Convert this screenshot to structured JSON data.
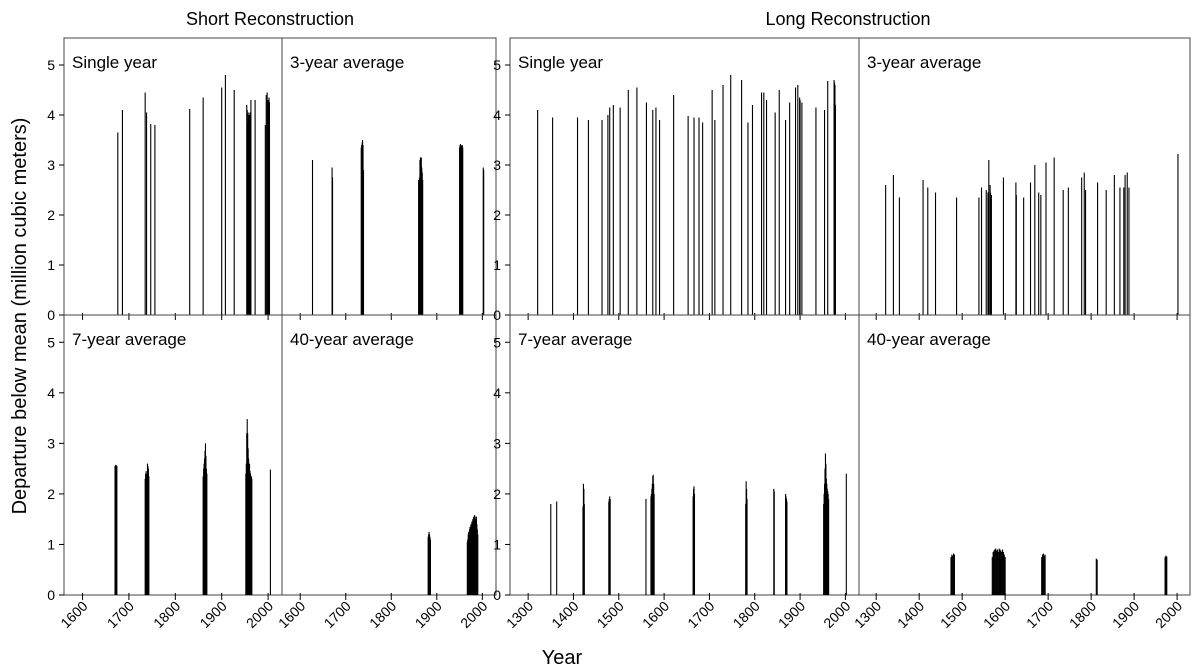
{
  "figure": {
    "ylabel": "Departure below mean (million cubic meters)",
    "xlabel": "Year",
    "group_titles": [
      "Short Reconstruction",
      "Long Reconstruction"
    ]
  },
  "chart_data": {
    "type": "bar",
    "ylim": [
      0,
      5.5
    ],
    "yticks": [
      0,
      1,
      2,
      3,
      4,
      5
    ],
    "grid": false,
    "panels": [
      {
        "id": "short-single",
        "group": "Short Reconstruction",
        "label": "Single year",
        "xlim": [
          1560,
          2030
        ],
        "xticks": [
          1600,
          1700,
          1800,
          1900,
          2000
        ],
        "xtick_labels_shown": false,
        "x": [
          1676,
          1686,
          1735,
          1738,
          1747,
          1756,
          1831,
          1860,
          1900,
          1908,
          1927,
          1954,
          1955,
          1956,
          1957,
          1958,
          1959,
          1961,
          1963,
          1972,
          1994,
          1996,
          1998,
          2000,
          2002,
          2003
        ],
        "values": [
          3.65,
          4.1,
          4.45,
          4.05,
          3.82,
          3.8,
          4.12,
          4.35,
          4.55,
          4.8,
          4.5,
          4.2,
          4.1,
          3.8,
          4.05,
          3.9,
          4.0,
          4.05,
          4.3,
          4.3,
          3.8,
          4.4,
          4.45,
          4.3,
          4.35,
          4.25
        ]
      },
      {
        "id": "short-3yr",
        "group": "Short Reconstruction",
        "label": "3-year average",
        "xlim": [
          1560,
          2030
        ],
        "xticks": [
          1600,
          1700,
          1800,
          1900,
          2000
        ],
        "xtick_labels_shown": false,
        "x": [
          1627,
          1670,
          1671,
          1734,
          1735,
          1736,
          1737,
          1738,
          1739,
          1860,
          1861,
          1862,
          1863,
          1864,
          1865,
          1866,
          1867,
          1868,
          1869,
          1950,
          1951,
          1952,
          1953,
          1954,
          1955,
          1956,
          1957,
          2002,
          2003
        ],
        "values": [
          3.1,
          2.95,
          2.75,
          3.35,
          3.4,
          3.45,
          3.5,
          3.4,
          2.9,
          2.7,
          2.7,
          2.75,
          3.1,
          3.15,
          3.15,
          3.15,
          2.95,
          2.85,
          2.7,
          3.35,
          3.4,
          3.42,
          3.4,
          3.35,
          3.38,
          3.4,
          3.35,
          2.95,
          2.9
        ]
      },
      {
        "id": "short-7yr",
        "group": "Short Reconstruction",
        "label": "7-year average",
        "xlim": [
          1560,
          2030
        ],
        "xticks": [
          1600,
          1700,
          1800,
          1900,
          2000
        ],
        "xtick_labels_shown": true,
        "x": [
          1670,
          1671,
          1672,
          1673,
          1674,
          1735,
          1736,
          1737,
          1738,
          1739,
          1740,
          1741,
          1742,
          1743,
          1860,
          1861,
          1862,
          1863,
          1864,
          1865,
          1866,
          1867,
          1868,
          1952,
          1953,
          1954,
          1955,
          1956,
          1957,
          1958,
          1959,
          1960,
          1961,
          1962,
          1963,
          1964,
          1965,
          2005
        ],
        "values": [
          2.55,
          2.57,
          2.57,
          2.56,
          2.55,
          2.3,
          2.4,
          2.45,
          2.4,
          2.35,
          2.6,
          2.55,
          2.5,
          2.35,
          2.35,
          2.5,
          2.6,
          2.7,
          2.85,
          3.0,
          2.75,
          2.5,
          2.4,
          2.4,
          2.6,
          3.2,
          3.48,
          3.2,
          2.9,
          2.7,
          2.5,
          2.6,
          2.45,
          2.4,
          2.3,
          2.35,
          2.3,
          2.48
        ]
      },
      {
        "id": "short-40yr",
        "group": "Short Reconstruction",
        "label": "40-year average",
        "xlim": [
          1560,
          2030
        ],
        "xticks": [
          1600,
          1700,
          1800,
          1900,
          2000
        ],
        "xtick_labels_shown": true,
        "x": [
          1881,
          1882,
          1883,
          1884,
          1885,
          1886,
          1967,
          1968,
          1969,
          1970,
          1971,
          1972,
          1973,
          1974,
          1975,
          1976,
          1977,
          1978,
          1979,
          1980,
          1981,
          1982,
          1983,
          1984,
          1985,
          1986,
          1987,
          1988,
          1989,
          1990
        ],
        "values": [
          1.15,
          1.2,
          1.25,
          1.2,
          1.15,
          1.1,
          1.05,
          1.1,
          1.2,
          1.25,
          1.2,
          1.3,
          1.35,
          1.3,
          1.4,
          1.35,
          1.45,
          1.4,
          1.5,
          1.45,
          1.55,
          1.5,
          1.58,
          1.55,
          1.5,
          1.45,
          1.55,
          1.4,
          1.3,
          1.2
        ]
      },
      {
        "id": "long-single",
        "group": "Long Reconstruction",
        "label": "Single year",
        "xlim": [
          1260,
          2030
        ],
        "xticks": [
          1300,
          1400,
          1500,
          1600,
          1700,
          1800,
          1900,
          2000
        ],
        "xtick_labels_shown": false,
        "x": [
          1321,
          1354,
          1409,
          1433,
          1463,
          1476,
          1480,
          1488,
          1503,
          1521,
          1540,
          1561,
          1575,
          1582,
          1590,
          1621,
          1653,
          1666,
          1677,
          1685,
          1706,
          1712,
          1730,
          1747,
          1771,
          1785,
          1795,
          1815,
          1820,
          1826,
          1845,
          1854,
          1868,
          1877,
          1890,
          1895,
          1899,
          1900,
          1904,
          1935,
          1954,
          1961,
          1975,
          1976,
          1977,
          1978
        ],
        "values": [
          4.1,
          3.95,
          3.95,
          3.9,
          3.9,
          4.0,
          4.15,
          4.2,
          4.15,
          4.5,
          4.55,
          4.25,
          4.1,
          4.15,
          3.9,
          4.4,
          3.98,
          3.95,
          3.95,
          3.85,
          4.5,
          3.9,
          4.6,
          4.8,
          4.7,
          3.85,
          4.2,
          4.45,
          4.45,
          4.3,
          4.05,
          4.5,
          3.9,
          4.25,
          4.55,
          4.6,
          4.35,
          4.3,
          4.25,
          4.15,
          4.1,
          4.68,
          4.7,
          4.65,
          4.6,
          4.2
        ]
      },
      {
        "id": "long-3yr",
        "group": "Long Reconstruction",
        "label": "3-year average",
        "xlim": [
          1260,
          2030
        ],
        "xticks": [
          1300,
          1400,
          1500,
          1600,
          1700,
          1800,
          1900,
          2000
        ],
        "xtick_labels_shown": false,
        "x": [
          1322,
          1340,
          1354,
          1409,
          1420,
          1438,
          1487,
          1539,
          1545,
          1556,
          1560,
          1562,
          1565,
          1566,
          1568,
          1596,
          1625,
          1626,
          1643,
          1659,
          1669,
          1678,
          1683,
          1695,
          1714,
          1735,
          1747,
          1778,
          1784,
          1787,
          1815,
          1835,
          1854,
          1867,
          1876,
          1879,
          1884,
          1888,
          2002
        ],
        "values": [
          2.6,
          2.8,
          2.35,
          2.7,
          2.55,
          2.45,
          2.35,
          2.35,
          2.55,
          2.5,
          2.45,
          3.1,
          2.6,
          2.45,
          2.4,
          2.75,
          2.65,
          2.4,
          2.35,
          2.65,
          3.0,
          2.45,
          2.4,
          3.05,
          3.15,
          2.5,
          2.55,
          2.75,
          2.85,
          2.5,
          2.65,
          2.5,
          2.8,
          2.55,
          2.55,
          2.8,
          2.85,
          2.55,
          3.22
        ]
      },
      {
        "id": "long-7yr",
        "group": "Long Reconstruction",
        "label": "7-year average",
        "xlim": [
          1260,
          2030
        ],
        "xticks": [
          1300,
          1400,
          1500,
          1600,
          1700,
          1800,
          1900,
          2000
        ],
        "xtick_labels_shown": true,
        "x": [
          1350,
          1363,
          1421,
          1422,
          1423,
          1424,
          1478,
          1479,
          1480,
          1481,
          1560,
          1571,
          1572,
          1573,
          1574,
          1575,
          1576,
          1577,
          1578,
          1664,
          1665,
          1666,
          1667,
          1780,
          1781,
          1782,
          1783,
          1842,
          1843,
          1868,
          1869,
          1870,
          1871,
          1952,
          1953,
          1954,
          1955,
          1956,
          1957,
          1958,
          1959,
          1960,
          1961,
          1962,
          1963,
          2002
        ],
        "values": [
          1.8,
          1.85,
          1.75,
          2.2,
          2.1,
          1.8,
          1.85,
          1.9,
          1.95,
          1.9,
          1.9,
          1.95,
          2.0,
          2.1,
          2.2,
          2.35,
          2.38,
          2.2,
          2.0,
          1.95,
          2.1,
          2.15,
          2.0,
          1.8,
          2.25,
          2.1,
          1.9,
          2.1,
          2.05,
          2.0,
          1.95,
          1.9,
          1.85,
          1.8,
          2.0,
          2.2,
          2.5,
          2.8,
          2.6,
          2.3,
          2.2,
          2.1,
          2.05,
          2.0,
          1.9,
          2.4
        ]
      },
      {
        "id": "long-40yr",
        "group": "Long Reconstruction",
        "label": "40-year average",
        "xlim": [
          1260,
          2030
        ],
        "xticks": [
          1300,
          1400,
          1500,
          1600,
          1700,
          1800,
          1900,
          2000
        ],
        "xtick_labels_shown": true,
        "x": [
          1474,
          1476,
          1478,
          1480,
          1482,
          1570,
          1572,
          1574,
          1576,
          1578,
          1580,
          1582,
          1584,
          1586,
          1588,
          1590,
          1592,
          1594,
          1596,
          1598,
          1600,
          1685,
          1687,
          1689,
          1691,
          1693,
          1812,
          1814,
          1972,
          1974,
          1976
        ],
        "values": [
          0.75,
          0.8,
          0.78,
          0.82,
          0.8,
          0.75,
          0.85,
          0.88,
          0.9,
          0.92,
          0.88,
          0.9,
          0.85,
          0.92,
          0.9,
          0.88,
          0.85,
          0.9,
          0.85,
          0.8,
          0.75,
          0.75,
          0.8,
          0.82,
          0.78,
          0.8,
          0.72,
          0.7,
          0.75,
          0.78,
          0.76
        ]
      }
    ]
  }
}
